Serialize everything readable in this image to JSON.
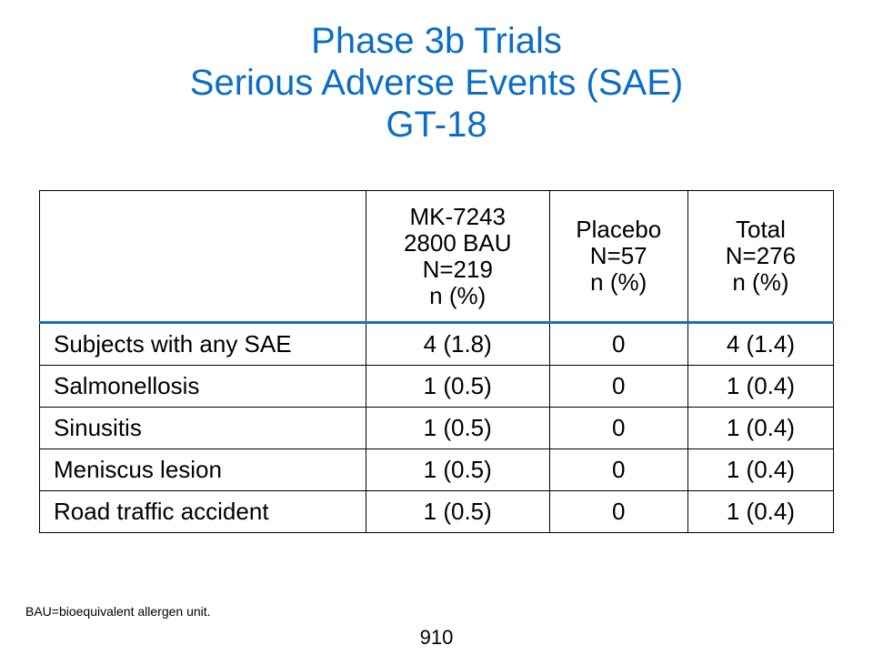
{
  "title": {
    "line1": "Phase 3b Trials",
    "line2": "Serious Adverse Events (SAE)",
    "line3": "GT-18"
  },
  "table": {
    "columns": [
      {
        "lines": [
          ""
        ]
      },
      {
        "lines": [
          "MK-7243",
          "2800 BAU",
          "N=219",
          "n (%)"
        ]
      },
      {
        "lines": [
          "Placebo",
          "N=57",
          "n (%)"
        ]
      },
      {
        "lines": [
          "Total",
          "N=276",
          "n (%)"
        ]
      }
    ],
    "rows": [
      {
        "label": "Subjects with any SAE",
        "mk": "4 (1.8)",
        "placebo": "0",
        "total": "4 (1.4)"
      },
      {
        "label": "Salmonellosis",
        "mk": "1 (0.5)",
        "placebo": "0",
        "total": "1 (0.4)"
      },
      {
        "label": "Sinusitis",
        "mk": "1 (0.5)",
        "placebo": "0",
        "total": "1 (0.4)"
      },
      {
        "label": "Meniscus lesion",
        "mk": "1 (0.5)",
        "placebo": "0",
        "total": "1 (0.4)"
      },
      {
        "label": "Road traffic accident",
        "mk": "1 (0.5)",
        "placebo": "0",
        "total": "1 (0.4)"
      }
    ]
  },
  "footnote": "BAU=bioequivalent allergen unit.",
  "page_number": "910",
  "colors": {
    "title": "#0b6ec5",
    "header_rule": "#1a6fc4"
  }
}
